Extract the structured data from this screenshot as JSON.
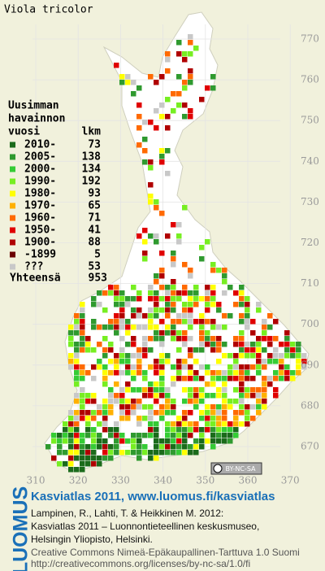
{
  "header": {
    "title": "Viola tricolor"
  },
  "legend": {
    "heading": [
      "Uusimman",
      "havainnon",
      "vuosi"
    ],
    "count_heading": "lkm",
    "rows": [
      {
        "label": "2010-",
        "count": 73,
        "color": "#1b6b1b"
      },
      {
        "label": "2005-",
        "count": 138,
        "color": "#2f9a2f"
      },
      {
        "label": "2000-",
        "count": 134,
        "color": "#35cc35"
      },
      {
        "label": "1990-",
        "count": 192,
        "color": "#77ee22"
      },
      {
        "label": "1980-",
        "count": 93,
        "color": "#ffff00"
      },
      {
        "label": "1970-",
        "count": 65,
        "color": "#ffb000"
      },
      {
        "label": "1960-",
        "count": 71,
        "color": "#ff6a00"
      },
      {
        "label": "1950-",
        "count": 41,
        "color": "#e00000"
      },
      {
        "label": "1900-",
        "count": 88,
        "color": "#b00000"
      },
      {
        "label": "-1899",
        "count": 5,
        "color": "#6a0000"
      },
      {
        "label": "???",
        "count": 53,
        "color": "#c8c8c8"
      }
    ],
    "total": {
      "label": "Yhteensä",
      "count": 953
    }
  },
  "map": {
    "xticks": [
      310,
      320,
      330,
      340,
      350,
      360,
      370
    ],
    "yticks": [
      670,
      680,
      690,
      700,
      710,
      720,
      730,
      740,
      750,
      760,
      770
    ],
    "license_badge": "BY-NC-SA"
  },
  "footer": {
    "brand": "LUOMUS",
    "title": "Kasviatlas 2011, www.luomus.fi/kasviatlas",
    "citation": [
      "Lampinen, R., Lahti, T. & Heikkinen M. 2012:",
      "Kasviatlas 2011 – Luonnontieteellinen keskusmuseo,",
      "Helsingin Yliopisto, Helsinki."
    ],
    "license": [
      "Creative Commons Nimeä-Epäkaupallinen-Tarttuva 1.0 Suomi",
      "http://creativecommons.org/licenses/by-nc-sa/1.0/fi"
    ]
  }
}
